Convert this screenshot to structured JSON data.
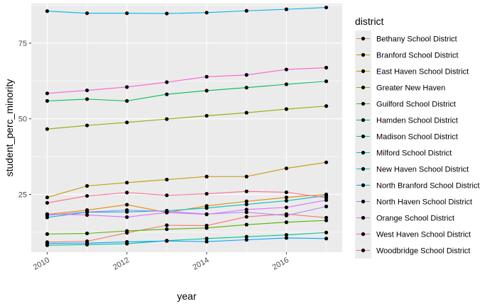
{
  "chart_data": {
    "type": "line",
    "xlabel": "year",
    "ylabel": "student_perc_minority",
    "legend_title": "district",
    "legend_position": "right",
    "grid": true,
    "x": [
      2010,
      2011,
      2012,
      2013,
      2014,
      2015,
      2016,
      2017
    ],
    "xticks": [
      2010,
      2012,
      2014,
      2016
    ],
    "yticks": [
      25,
      50,
      75
    ],
    "xlim": [
      2009.6,
      2017.4
    ],
    "ylim": [
      5.9,
      88.1
    ],
    "series": [
      {
        "name": "Bethany School District",
        "color": "#F8766D",
        "values": [
          9.2,
          9.5,
          12.3,
          14.8,
          14.7,
          17.6,
          18.5,
          17.3
        ]
      },
      {
        "name": "Branford School District",
        "color": "#E38900",
        "values": [
          18.4,
          19.8,
          21.6,
          19.0,
          21.2,
          22.7,
          24.0,
          25.0
        ]
      },
      {
        "name": "East Haven School District",
        "color": "#C49A00",
        "values": [
          24.0,
          27.8,
          28.9,
          29.9,
          30.9,
          30.9,
          33.6,
          35.6
        ]
      },
      {
        "name": "Greater New Haven",
        "color": "#99A800",
        "values": [
          46.6,
          47.8,
          48.8,
          49.9,
          51.0,
          52.0,
          53.2,
          54.2
        ]
      },
      {
        "name": "Guilford School District",
        "color": "#53B400",
        "values": [
          11.9,
          12.1,
          12.9,
          13.5,
          13.9,
          15.0,
          15.8,
          16.4
        ]
      },
      {
        "name": "Hamden School District",
        "color": "#00BC56",
        "values": [
          55.9,
          56.5,
          55.9,
          58.1,
          59.3,
          60.3,
          61.4,
          62.4
        ]
      },
      {
        "name": "Madison School District",
        "color": "#00C094",
        "values": [
          8.2,
          8.4,
          8.7,
          9.7,
          10.4,
          11.0,
          11.6,
          12.4
        ]
      },
      {
        "name": "Milford School District",
        "color": "#00BFC4",
        "values": [
          17.4,
          19.1,
          19.2,
          19.6,
          20.5,
          21.7,
          22.9,
          24.6
        ]
      },
      {
        "name": "New Haven School District",
        "color": "#00B6EB",
        "values": [
          85.6,
          84.9,
          84.9,
          84.8,
          85.1,
          85.7,
          86.2,
          86.8
        ]
      },
      {
        "name": "North Branford School District",
        "color": "#06A4FF",
        "values": [
          8.8,
          8.9,
          9.3,
          9.6,
          9.4,
          10.0,
          10.6,
          10.4
        ]
      },
      {
        "name": "North Haven School District",
        "color": "#A58AFF",
        "values": [
          18.1,
          19.2,
          19.8,
          19.4,
          18.5,
          19.1,
          18.0,
          21.0
        ]
      },
      {
        "name": "Orange School District",
        "color": "#DF70F8",
        "values": [
          18.5,
          18.2,
          17.5,
          19.0,
          18.4,
          20.0,
          20.7,
          23.1
        ]
      },
      {
        "name": "West Haven School District",
        "color": "#FB61D7",
        "values": [
          58.4,
          59.4,
          60.5,
          62.1,
          63.9,
          64.5,
          66.3,
          66.9
        ]
      },
      {
        "name": "Woodbridge School District",
        "color": "#FF6C91",
        "values": [
          22.2,
          24.5,
          25.6,
          24.7,
          25.2,
          26.0,
          25.7,
          23.9
        ]
      }
    ]
  }
}
